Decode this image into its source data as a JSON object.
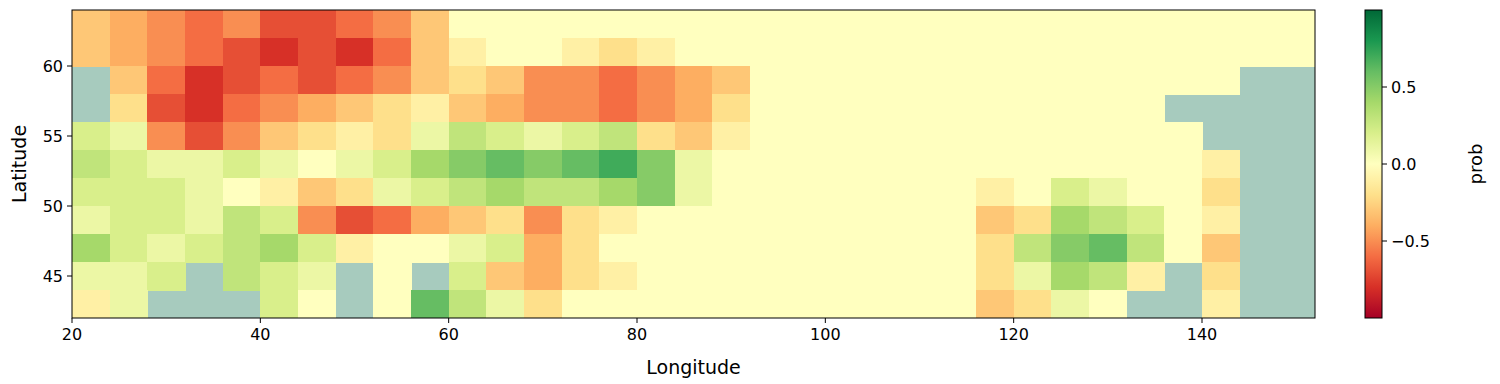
{
  "chart_data": {
    "type": "heatmap",
    "x_label": "Longitude",
    "y_label": "Latitude",
    "x": [
      22,
      26,
      30,
      34,
      38,
      42,
      46,
      50,
      54,
      58,
      62,
      66,
      70,
      74,
      78,
      82,
      86,
      90,
      94,
      98,
      102,
      106,
      110,
      114,
      118,
      122,
      126,
      130,
      134,
      138,
      142,
      146,
      150
    ],
    "y": [
      63,
      61,
      59,
      57,
      55,
      53,
      51,
      49,
      47,
      45,
      43
    ],
    "values": [
      [
        -0.3,
        -0.4,
        -0.5,
        -0.6,
        -0.5,
        -0.7,
        -0.7,
        -0.6,
        -0.5,
        -0.3,
        0,
        0,
        0,
        0,
        0,
        0,
        0,
        0,
        0,
        0,
        0,
        0,
        0,
        0,
        0,
        0,
        0,
        0,
        0,
        0,
        0,
        0,
        0
      ],
      [
        -0.3,
        -0.4,
        -0.5,
        -0.6,
        -0.7,
        -0.8,
        -0.7,
        -0.8,
        -0.6,
        -0.3,
        -0.1,
        0,
        0,
        -0.1,
        -0.2,
        -0.1,
        0,
        0,
        0,
        0,
        0,
        0,
        0,
        0,
        0,
        0,
        0,
        0,
        0,
        0,
        0,
        0,
        0
      ],
      [
        null,
        -0.3,
        -0.6,
        -0.8,
        -0.7,
        -0.6,
        -0.7,
        -0.6,
        -0.5,
        -0.3,
        -0.2,
        -0.3,
        -0.5,
        -0.5,
        -0.6,
        -0.5,
        -0.4,
        -0.3,
        0,
        0,
        0,
        0,
        0,
        0,
        0,
        0,
        0,
        0,
        0,
        0,
        0,
        null,
        null
      ],
      [
        null,
        -0.2,
        -0.7,
        -0.8,
        -0.6,
        -0.5,
        -0.4,
        -0.3,
        -0.2,
        -0.1,
        -0.3,
        -0.4,
        -0.5,
        -0.5,
        -0.6,
        -0.5,
        -0.4,
        -0.2,
        0,
        0,
        0,
        0,
        0,
        0,
        0,
        0,
        0,
        0,
        0,
        null,
        null,
        null,
        null
      ],
      [
        0.2,
        0.1,
        -0.5,
        -0.7,
        -0.5,
        -0.3,
        -0.2,
        -0.1,
        -0.2,
        0.1,
        0.3,
        0.2,
        0.1,
        0.2,
        0.3,
        -0.2,
        -0.3,
        -0.1,
        0,
        0,
        0,
        0,
        0,
        0,
        0,
        0,
        0,
        0,
        0,
        0,
        null,
        null,
        null
      ],
      [
        0.3,
        0.2,
        0.1,
        0.1,
        0.2,
        0.1,
        0,
        0.1,
        0.2,
        0.4,
        0.5,
        0.6,
        0.5,
        0.6,
        0.7,
        0.5,
        0.1,
        0,
        0,
        0,
        0,
        0,
        0,
        0,
        0,
        0,
        0,
        0,
        0,
        0,
        -0.1,
        null,
        null
      ],
      [
        0.2,
        0.2,
        0.2,
        0.1,
        0,
        -0.1,
        -0.3,
        -0.2,
        0.1,
        0.2,
        0.3,
        0.4,
        0.3,
        0.3,
        0.4,
        0.5,
        0.1,
        0,
        0,
        0,
        0,
        0,
        0,
        0,
        -0.1,
        0,
        0.2,
        0.1,
        0,
        0,
        -0.2,
        null,
        null
      ],
      [
        0.1,
        0.2,
        0.2,
        0.1,
        0.3,
        0.2,
        -0.5,
        -0.7,
        -0.6,
        -0.4,
        -0.3,
        -0.2,
        -0.5,
        -0.2,
        -0.1,
        0,
        0,
        0,
        0,
        0,
        0,
        0,
        0,
        0,
        -0.3,
        -0.2,
        0.4,
        0.3,
        0.2,
        0,
        -0.1,
        null,
        null
      ],
      [
        0.4,
        0.2,
        0.1,
        0.2,
        0.3,
        0.4,
        0.2,
        -0.1,
        0,
        0,
        0.1,
        0.2,
        -0.4,
        -0.2,
        0,
        0,
        0,
        0,
        0,
        0,
        0,
        0,
        0,
        0,
        -0.2,
        0.3,
        0.5,
        0.6,
        0.3,
        0,
        -0.3,
        null,
        null
      ],
      [
        0.1,
        0.1,
        0.2,
        null,
        0.3,
        0.2,
        0.1,
        null,
        0,
        null,
        0.2,
        -0.3,
        -0.4,
        -0.2,
        -0.1,
        0,
        0,
        0,
        0,
        0,
        0,
        0,
        0,
        0,
        -0.2,
        0.1,
        0.4,
        0.3,
        -0.1,
        null,
        -0.2,
        null,
        null
      ],
      [
        -0.1,
        0.1,
        null,
        null,
        null,
        0.2,
        0,
        null,
        0,
        0.6,
        0.3,
        0.1,
        -0.2,
        0,
        0,
        0,
        0,
        0,
        0,
        0,
        0,
        0,
        0,
        0,
        -0.3,
        -0.2,
        0.1,
        0,
        null,
        null,
        -0.1,
        null,
        null
      ]
    ],
    "xlim": [
      20,
      152
    ],
    "ylim": [
      42,
      64
    ],
    "xticks": [
      20,
      40,
      60,
      80,
      100,
      120,
      140
    ],
    "yticks": [
      45,
      50,
      55,
      60
    ],
    "colorbar": {
      "label": "prob",
      "range": [
        -1,
        1
      ],
      "ticks": [
        {
          "value": -0.5,
          "label": "−0.5"
        },
        {
          "value": 0,
          "label": "0.0"
        },
        {
          "value": 0.5,
          "label": "0.5"
        }
      ]
    }
  }
}
